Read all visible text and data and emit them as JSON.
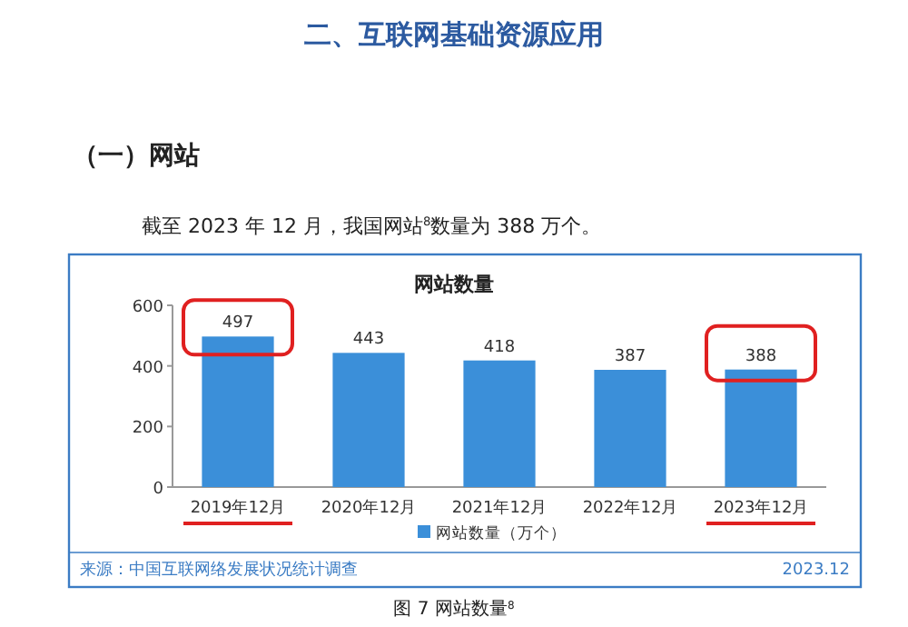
{
  "chart_data": {
    "type": "bar",
    "title": "网站数量",
    "categories": [
      "2019年12月",
      "2020年12月",
      "2021年12月",
      "2022年12月",
      "2023年12月"
    ],
    "series": [
      {
        "name": "网站数量（万个）",
        "color": "#3b8fd9",
        "values": [
          497,
          443,
          418,
          387,
          388
        ]
      }
    ],
    "ylim": [
      0,
      600
    ],
    "yticks": [
      0,
      200,
      400,
      600
    ],
    "data_labels": true,
    "legend": "bottom",
    "grid": false,
    "annotations": [
      "二、互联网基础资源应用",
      "（一）网站",
      "截至 2023 年 12 月，我国网站$^{8}$数量为 388 万个。",
      "来源：中国互联网络发展状况统计调查",
      "2023.12",
      "图 7 网站数量$^{8}$"
    ]
  }
}
